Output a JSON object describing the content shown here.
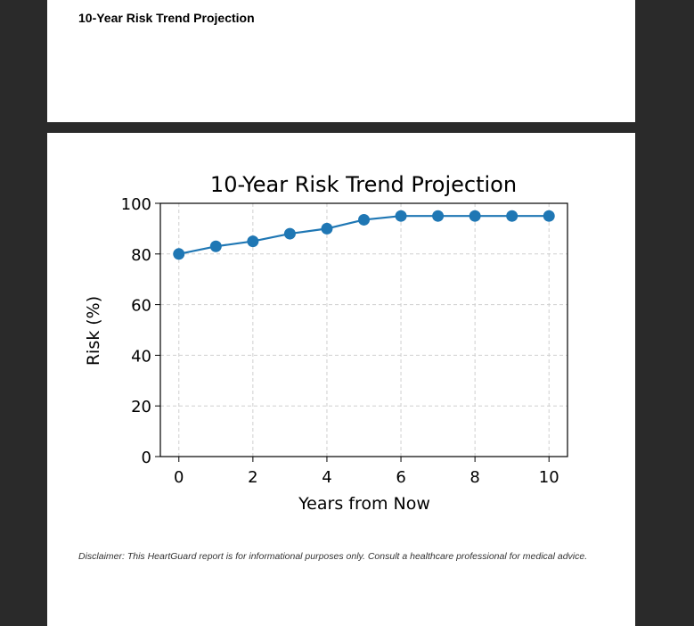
{
  "report": {
    "section_heading": "10-Year Risk Trend Projection",
    "disclaimer": "Disclaimer: This HeartGuard report is for informational purposes only. Consult a healthcare professional for medical advice."
  },
  "chart_data": {
    "type": "line",
    "title": "10-Year Risk Trend Projection",
    "xlabel": "Years from Now",
    "ylabel": "Risk (%)",
    "x": [
      0,
      1,
      2,
      3,
      4,
      5,
      6,
      7,
      8,
      9,
      10
    ],
    "series": [
      {
        "values": [
          80,
          83,
          85,
          88,
          90,
          93.5,
          95,
          95,
          95,
          95,
          95
        ],
        "color": "#1f77b4"
      }
    ],
    "xlim": [
      -0.5,
      10.5
    ],
    "ylim": [
      0,
      100
    ],
    "xticks": [
      0,
      2,
      4,
      6,
      8,
      10
    ],
    "yticks": [
      0,
      20,
      40,
      60,
      80,
      100
    ],
    "grid": true,
    "marker": "circle"
  }
}
